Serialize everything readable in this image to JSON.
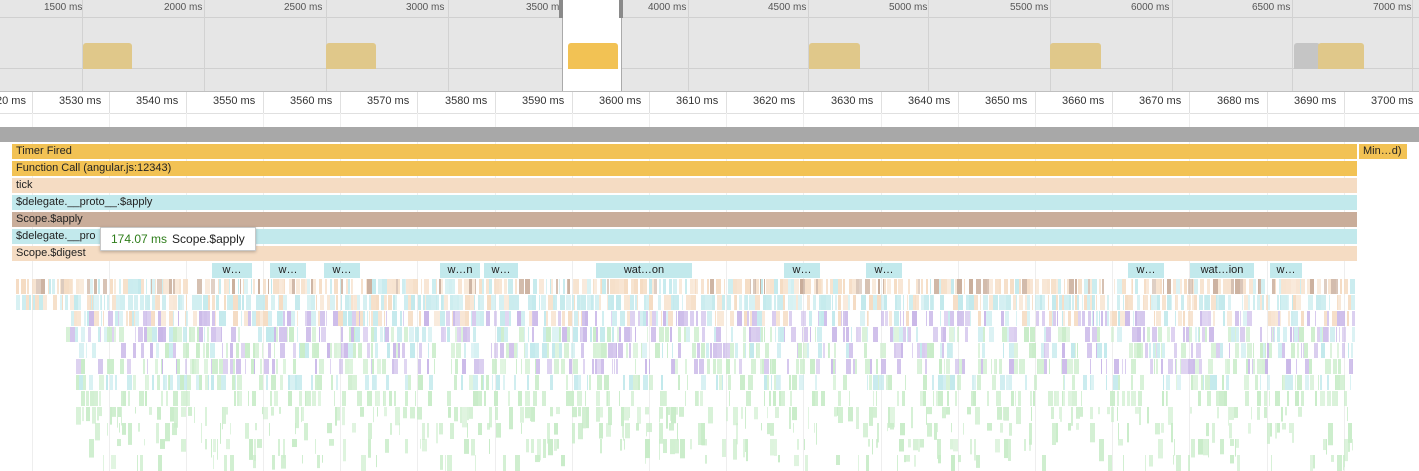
{
  "overview": {
    "labels": [
      "1500 ms",
      "2000 ms",
      "2500 ms",
      "3000 ms",
      "3500 ms",
      "4000 ms",
      "4500 ms",
      "5000 ms",
      "5500 ms",
      "6000 ms",
      "6500 ms",
      "7000 ms"
    ],
    "selection": {
      "start_label": "3500 ms",
      "end_label": "4000 ms"
    }
  },
  "ruler": {
    "labels": [
      "20 ms",
      "3530 ms",
      "3540 ms",
      "3550 ms",
      "3560 ms",
      "3570 ms",
      "3580 ms",
      "3590 ms",
      "3600 ms",
      "3610 ms",
      "3620 ms",
      "3630 ms",
      "3640 ms",
      "3650 ms",
      "3660 ms",
      "3670 ms",
      "3680 ms",
      "3690 ms",
      "3700 ms"
    ]
  },
  "flame": {
    "timer_fired": "Timer Fired",
    "function_call": "Function Call (angular.js:12343)",
    "tick": "tick",
    "delegate_apply": "$delegate.__proto__.$apply",
    "scope_apply": "Scope.$apply",
    "delegate_proto": "$delegate.__pro",
    "scope_digest": "Scope.$digest",
    "min_frame": "Min…d)",
    "watch_labels": [
      "w…",
      "w…",
      "w…",
      "w…n",
      "w…",
      "wat…on",
      "w…",
      "w…",
      "w…",
      "wat…ion",
      "w…"
    ]
  },
  "tooltip": {
    "duration": "174.07 ms",
    "name": "Scope.$apply"
  },
  "colors": {
    "timer": "#f2c254",
    "tick": "#f5dcc3",
    "teal": "#c2e9ec",
    "brown": "#c9ad9a",
    "purple": "#c9b7e8",
    "green": "#c8ecc8",
    "tooltip_duration": "#2e7d1a"
  }
}
